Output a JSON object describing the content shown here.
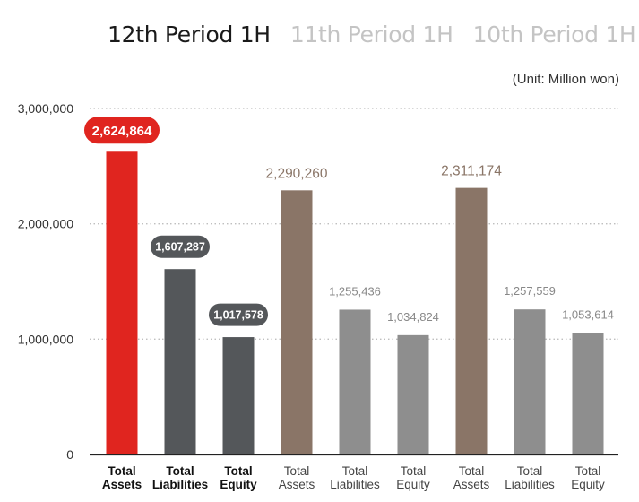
{
  "tabs": [
    {
      "label": "12th Period 1H",
      "active": true
    },
    {
      "label": "11th Period 1H",
      "active": false
    },
    {
      "label": "10th Period 1H",
      "active": false
    }
  ],
  "unit_label": "(Unit: Million won)",
  "colors": {
    "highlight": "#e0251f",
    "dark_gray": "#54575a",
    "brown": "#8a7567",
    "light_gray": "#8e8e8e",
    "grid": "#bfbfbf",
    "axis": "#222222"
  },
  "chart_data": {
    "type": "bar",
    "title": "",
    "xlabel": "",
    "ylabel": "",
    "ylim": [
      0,
      3000000
    ],
    "y_ticks": [
      {
        "value": 0,
        "label": "0"
      },
      {
        "value": 1000000,
        "label": "1,000,000"
      },
      {
        "value": 2000000,
        "label": "2,000,000"
      },
      {
        "value": 3000000,
        "label": "3,000,000"
      }
    ],
    "grid": true,
    "categories": [
      [
        "Total",
        "Assets"
      ],
      [
        "Total",
        "Liabilities"
      ],
      [
        "Total",
        "Equity"
      ],
      [
        "Total",
        "Assets"
      ],
      [
        "Total",
        "Liabilities"
      ],
      [
        "Total",
        "Equity"
      ],
      [
        "Total",
        "Assets"
      ],
      [
        "Total",
        "Liabilities"
      ],
      [
        "Total",
        "Equity"
      ]
    ],
    "values": [
      2624864,
      1607287,
      1017578,
      2290260,
      1255436,
      1034824,
      2311174,
      1257559,
      1053614
    ],
    "value_labels": [
      "2,624,864",
      "1,607,287",
      "1,017,578",
      "2,290,260",
      "1,255,436",
      "1,034,824",
      "2,311,174",
      "1,257,559",
      "1,053,614"
    ],
    "bar_colors": [
      "#e0251f",
      "#54575a",
      "#54575a",
      "#8a7567",
      "#8e8e8e",
      "#8e8e8e",
      "#8a7567",
      "#8e8e8e",
      "#8e8e8e"
    ],
    "label_styles": [
      "pill-red",
      "pill-dark",
      "pill-dark",
      "text-brown",
      "text-gray",
      "text-gray",
      "text-brown",
      "text-gray",
      "text-gray"
    ]
  }
}
